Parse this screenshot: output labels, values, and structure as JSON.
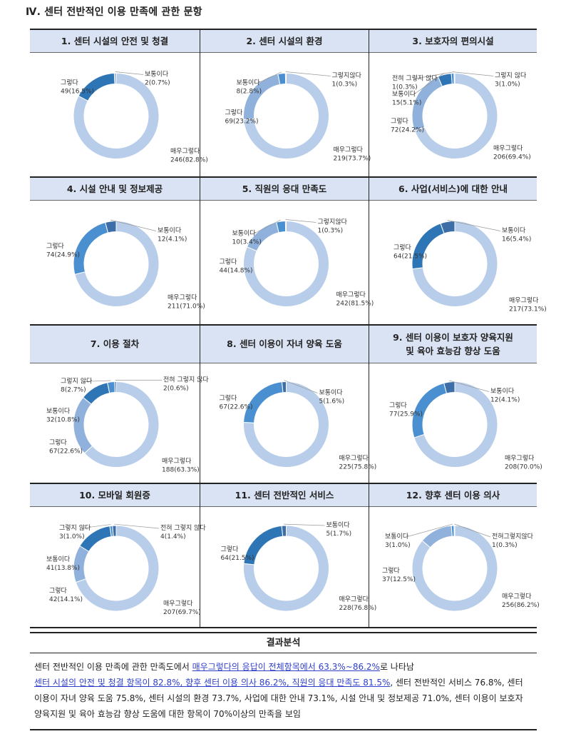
{
  "section_title": "Ⅳ. 센터 전반적인 이용 만족에 관한 문항",
  "series_colors": [
    "#2e75b6",
    "#4a8fd0",
    "#8fb1db",
    "#b7cde9",
    "#3d6ea8"
  ],
  "chart_data": [
    {
      "type": "donut",
      "title": "1. 센터 시설의 안전 및 청결",
      "slices": [
        {
          "label": "매우그렇다",
          "count": "246",
          "pct": "(82.8%)",
          "value": 82.8,
          "color": "#b7cde9"
        },
        {
          "label": "그렇다",
          "count": "49",
          "pct": "(16.5%)",
          "value": 16.5,
          "color": "#2e75b6"
        },
        {
          "label": "보통이다",
          "count": "2",
          "pct": "(0.7%)",
          "value": 0.7,
          "color": "#8fb1db"
        }
      ]
    },
    {
      "type": "donut",
      "title": "2. 센터 시설의 환경",
      "slices": [
        {
          "label": "매우그렇다",
          "count": "219",
          "pct": "(73.7%)",
          "value": 73.7,
          "color": "#b7cde9"
        },
        {
          "label": "그렇다",
          "count": "69",
          "pct": "(23.2%)",
          "value": 23.2,
          "color": "#8fb1db"
        },
        {
          "label": "보통이다",
          "count": "8",
          "pct": "(2.8%)",
          "value": 2.8,
          "color": "#4a8fd0"
        },
        {
          "label": "그렇지않다",
          "count": "1",
          "pct": "(0.3%)",
          "value": 0.3,
          "color": "#2e75b6"
        }
      ]
    },
    {
      "type": "donut",
      "title": "3. 보호자의 편의시설",
      "slices": [
        {
          "label": "매우그렇다",
          "count": "206",
          "pct": "(69.4%)",
          "value": 69.4,
          "color": "#b7cde9"
        },
        {
          "label": "그렇다",
          "count": "72",
          "pct": "(24.2%)",
          "value": 24.2,
          "color": "#8fb1db"
        },
        {
          "label": "보통이다",
          "count": "15",
          "pct": "(5.1%)",
          "value": 5.1,
          "color": "#2e75b6"
        },
        {
          "label": "그렇지 않다",
          "count": "3",
          "pct": "(1.0%)",
          "value": 1.0,
          "color": "#4a8fd0"
        },
        {
          "label": "전혀 그렇지 않다",
          "count": "1",
          "pct": "(0.3%)",
          "value": 0.3,
          "color": "#3d6ea8"
        }
      ]
    },
    {
      "type": "donut",
      "title": "4. 시설 안내 및 정보제공",
      "slices": [
        {
          "label": "매우그렇다",
          "count": "211",
          "pct": "(71.0%)",
          "value": 71.0,
          "color": "#b7cde9"
        },
        {
          "label": "그렇다",
          "count": "74",
          "pct": "(24.9%)",
          "value": 24.9,
          "color": "#4a8fd0"
        },
        {
          "label": "보통이다",
          "count": "12",
          "pct": "(4.1%)",
          "value": 4.1,
          "color": "#3d6ea8"
        }
      ]
    },
    {
      "type": "donut",
      "title": "5. 직원의 응대 만족도",
      "slices": [
        {
          "label": "매우그렇다",
          "count": "242",
          "pct": "(81.5%)",
          "value": 81.5,
          "color": "#b7cde9"
        },
        {
          "label": "그렇다",
          "count": "44",
          "pct": "(14.8%)",
          "value": 14.8,
          "color": "#8fb1db"
        },
        {
          "label": "보통이다",
          "count": "10",
          "pct": "(3.4%)",
          "value": 3.4,
          "color": "#4a8fd0"
        },
        {
          "label": "그렇지않다",
          "count": "1",
          "pct": "(0.3%)",
          "value": 0.3,
          "color": "#2e75b6"
        }
      ]
    },
    {
      "type": "donut",
      "title": "6. 사업(서비스)에 대한 안내",
      "slices": [
        {
          "label": "매우그렇다",
          "count": "217",
          "pct": "(73.1%)",
          "value": 73.1,
          "color": "#b7cde9"
        },
        {
          "label": "그렇다",
          "count": "64",
          "pct": "(21.5%)",
          "value": 21.5,
          "color": "#2e75b6"
        },
        {
          "label": "보통이다",
          "count": "16",
          "pct": "(5.4%)",
          "value": 5.4,
          "color": "#3d6ea8"
        }
      ]
    },
    {
      "type": "donut",
      "title": "7. 이용 절차",
      "slices": [
        {
          "label": "매우그렇다",
          "count": "188",
          "pct": "(63.3%)",
          "value": 63.3,
          "color": "#b7cde9"
        },
        {
          "label": "그렇다",
          "count": "67",
          "pct": "(22.6%)",
          "value": 22.6,
          "color": "#8fb1db"
        },
        {
          "label": "보통이다",
          "count": "32",
          "pct": "(10.8%)",
          "value": 10.8,
          "color": "#2e75b6"
        },
        {
          "label": "그렇지 않다",
          "count": "8",
          "pct": "(2.7%)",
          "value": 2.7,
          "color": "#4a8fd0"
        },
        {
          "label": "전혀 그렇지 않다",
          "count": "2",
          "pct": "(0.6%)",
          "value": 0.6,
          "color": "#3d6ea8"
        }
      ]
    },
    {
      "type": "donut",
      "title": "8. 센터 이용이 자녀 양육 도움",
      "slices": [
        {
          "label": "매우그렇다",
          "count": "225",
          "pct": "(75.8%)",
          "value": 75.8,
          "color": "#b7cde9"
        },
        {
          "label": "그렇다",
          "count": "67",
          "pct": "(22.6%)",
          "value": 22.6,
          "color": "#4a8fd0"
        },
        {
          "label": "보통이다",
          "count": "5",
          "pct": "(1.6%)",
          "value": 1.6,
          "color": "#3d6ea8"
        }
      ]
    },
    {
      "type": "donut",
      "title": "9. 센터 이용이 보호자 양육지원 및 육아 효능감 향상 도움",
      "slices": [
        {
          "label": "매우그렇다",
          "count": "208",
          "pct": "(70.0%)",
          "value": 70.0,
          "color": "#b7cde9"
        },
        {
          "label": "그렇다",
          "count": "77",
          "pct": "(25.9%)",
          "value": 25.9,
          "color": "#4a8fd0"
        },
        {
          "label": "보통이다",
          "count": "12",
          "pct": "(4.1%)",
          "value": 4.1,
          "color": "#3d6ea8"
        }
      ]
    },
    {
      "type": "donut",
      "title": "10. 모바일 회원증",
      "slices": [
        {
          "label": "매우그렇다",
          "count": "207",
          "pct": "(69.7%)",
          "value": 69.7,
          "color": "#b7cde9"
        },
        {
          "label": "그렇다",
          "count": "42",
          "pct": "(14.1%)",
          "value": 14.1,
          "color": "#8fb1db"
        },
        {
          "label": "보통이다",
          "count": "41",
          "pct": "(13.8%)",
          "value": 13.8,
          "color": "#2e75b6"
        },
        {
          "label": "그렇지 않다",
          "count": "3",
          "pct": "(1.0%)",
          "value": 1.0,
          "color": "#4a8fd0"
        },
        {
          "label": "전혀 그렇지 않다",
          "count": "4",
          "pct": "(1.4%)",
          "value": 1.4,
          "color": "#3d6ea8"
        }
      ]
    },
    {
      "type": "donut",
      "title": "11. 센터 전반적인 서비스",
      "slices": [
        {
          "label": "매우그렇다",
          "count": "228",
          "pct": "(76.8%)",
          "value": 76.8,
          "color": "#b7cde9"
        },
        {
          "label": "그렇다",
          "count": "64",
          "pct": "(21.5%)",
          "value": 21.5,
          "color": "#2e75b6"
        },
        {
          "label": "보통이다",
          "count": "5",
          "pct": "(1.7%)",
          "value": 1.7,
          "color": "#3d6ea8"
        }
      ]
    },
    {
      "type": "donut",
      "title": "12. 향후 센터 이용 의사",
      "slices": [
        {
          "label": "매우그렇다",
          "count": "256",
          "pct": "(86.2%)",
          "value": 86.2,
          "color": "#b7cde9"
        },
        {
          "label": "그렇다",
          "count": "37",
          "pct": "(12.5%)",
          "value": 12.5,
          "color": "#8fb1db"
        },
        {
          "label": "보통이다",
          "count": "3",
          "pct": "(1.0%)",
          "value": 1.0,
          "color": "#4a8fd0"
        },
        {
          "label": "전혀그렇지않다",
          "count": "1",
          "pct": "(0.3%)",
          "value": 0.3,
          "color": "#2e75b6"
        }
      ]
    }
  ],
  "results": {
    "title": "결과분석",
    "text_1": "센터 전반적인 이용 만족에 관한 만족도에서 ",
    "highlight_1": "매우그렇다의 응답이 전체항목에서 63.3%~86.2%",
    "text_2": "로 나타남",
    "highlight_2": "센터 시설의 안전 및 청결 항목이 82.8%, 향후 센터 이용 의사 86.2%, 직원의 응대 만족도 81.5%",
    "text_3": ", 센터 전반적인 서비스 76.8%, 센터 이용이 자녀 양육 도움 75.8%, 센터 시설의 환경 73.7%, 사업에 대한 안내 73.1%, 시설 안내 및 정보제공 71.0%, 센터 이용이 보호자 양육지원 및 육아 효능감 향상 도움에 대한 항목이 70%이상의 만족을 보임"
  }
}
